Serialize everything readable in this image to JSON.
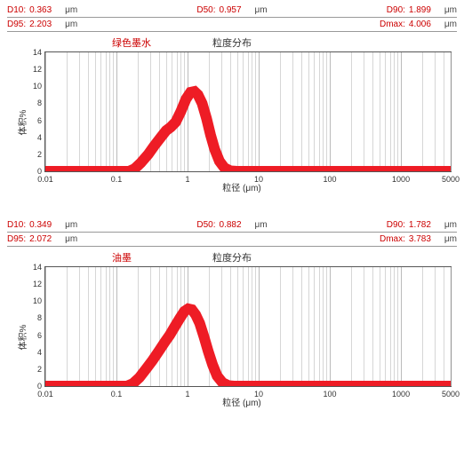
{
  "charts": [
    {
      "sample_label": "绿色墨水",
      "dist_label": "粒度分布",
      "ylabel": "体积%",
      "xlabel": "粒径 (μm)",
      "stats_row1": [
        {
          "key": "D10:",
          "val": "0.363",
          "unit": "μm"
        },
        {
          "key": "D50:",
          "val": "0.957",
          "unit": "μm"
        },
        {
          "key": "D90:",
          "val": "1.899",
          "unit": "μm"
        }
      ],
      "stats_row2": [
        {
          "key": "D95:",
          "val": "2.203",
          "unit": "μm"
        },
        {
          "key": "",
          "val": "",
          "unit": ""
        },
        {
          "key": "Dmax:",
          "val": "4.006",
          "unit": "μm"
        }
      ],
      "type": "line-log-x",
      "xlim": [
        0.01,
        5000
      ],
      "ylim": [
        0,
        14
      ],
      "ytick_step": 2,
      "xtick_major": [
        0.01,
        0.1,
        1,
        10,
        100,
        1000,
        5000
      ],
      "series_color": "#ee1c25",
      "line_width": 2,
      "grid_color": "#bbbbbb",
      "background_color": "#ffffff",
      "label_fontsize": 10,
      "tick_fontsize": 9,
      "curve_points": [
        [
          0.01,
          0
        ],
        [
          0.15,
          0
        ],
        [
          0.18,
          0.3
        ],
        [
          0.22,
          1.0
        ],
        [
          0.28,
          2.0
        ],
        [
          0.34,
          3.0
        ],
        [
          0.42,
          4.0
        ],
        [
          0.5,
          4.8
        ],
        [
          0.58,
          5.2
        ],
        [
          0.68,
          5.8
        ],
        [
          0.8,
          7.0
        ],
        [
          0.95,
          8.5
        ],
        [
          1.1,
          9.3
        ],
        [
          1.25,
          9.4
        ],
        [
          1.4,
          9.0
        ],
        [
          1.6,
          8.0
        ],
        [
          1.85,
          6.2
        ],
        [
          2.1,
          4.3
        ],
        [
          2.4,
          2.6
        ],
        [
          2.8,
          1.2
        ],
        [
          3.3,
          0.4
        ],
        [
          4.0,
          0.05
        ],
        [
          5.0,
          0
        ],
        [
          5000,
          0
        ]
      ]
    },
    {
      "sample_label": "油墨",
      "dist_label": "粒度分布",
      "ylabel": "体积%",
      "xlabel": "粒径 (μm)",
      "stats_row1": [
        {
          "key": "D10:",
          "val": "0.349",
          "unit": "μm"
        },
        {
          "key": "D50:",
          "val": "0.882",
          "unit": "μm"
        },
        {
          "key": "D90:",
          "val": "1.782",
          "unit": "μm"
        }
      ],
      "stats_row2": [
        {
          "key": "D95:",
          "val": "2.072",
          "unit": "μm"
        },
        {
          "key": "",
          "val": "",
          "unit": ""
        },
        {
          "key": "Dmax:",
          "val": "3.783",
          "unit": "μm"
        }
      ],
      "type": "line-log-x",
      "xlim": [
        0.01,
        5000
      ],
      "ylim": [
        0,
        14
      ],
      "ytick_step": 2,
      "xtick_major": [
        0.01,
        0.1,
        1,
        10,
        100,
        1000,
        5000
      ],
      "series_color": "#ee1c25",
      "line_width": 2,
      "grid_color": "#bbbbbb",
      "background_color": "#ffffff",
      "label_fontsize": 10,
      "tick_fontsize": 9,
      "curve_points": [
        [
          0.01,
          0
        ],
        [
          0.14,
          0
        ],
        [
          0.17,
          0.3
        ],
        [
          0.21,
          1.0
        ],
        [
          0.26,
          2.0
        ],
        [
          0.32,
          3.0
        ],
        [
          0.4,
          4.2
        ],
        [
          0.48,
          5.2
        ],
        [
          0.56,
          6.0
        ],
        [
          0.66,
          7.0
        ],
        [
          0.78,
          8.0
        ],
        [
          0.9,
          8.8
        ],
        [
          1.02,
          9.1
        ],
        [
          1.15,
          9.0
        ],
        [
          1.3,
          8.4
        ],
        [
          1.48,
          7.4
        ],
        [
          1.7,
          5.8
        ],
        [
          1.95,
          4.1
        ],
        [
          2.25,
          2.5
        ],
        [
          2.6,
          1.2
        ],
        [
          3.1,
          0.4
        ],
        [
          3.78,
          0.05
        ],
        [
          4.5,
          0
        ],
        [
          5000,
          0
        ]
      ]
    }
  ]
}
